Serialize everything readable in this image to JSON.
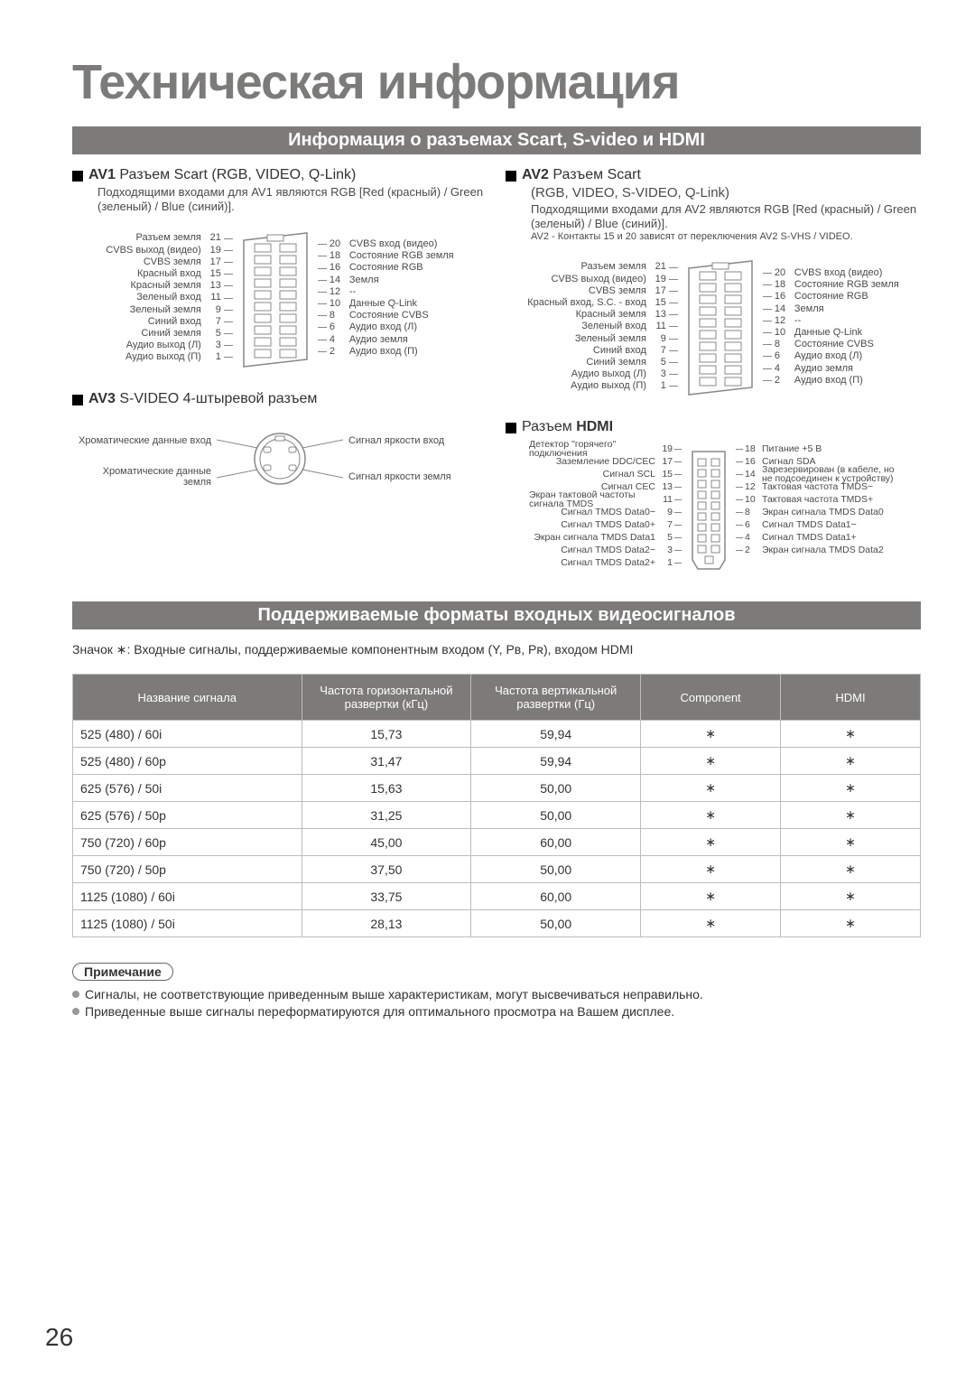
{
  "page_title": "Техническая информация",
  "page_number": "26",
  "colors": {
    "banner_bg": "#7c7b79",
    "banner_fg": "#ffffff",
    "text": "#333333",
    "muted": "#4a4a4a",
    "border": "#bdbdbd"
  },
  "banner1": "Информация о разъемах Scart, S-video и HDMI",
  "banner2": "Поддерживаемые форматы входных видеосигналов",
  "av1": {
    "title_bold": "AV1",
    "title_rest": " Разъем Scart (RGB, VIDEO, Q-Link)",
    "desc": "Подходящими входами для AV1 являются RGB [Red (красный) / Green (зеленый) / Blue (синий)]."
  },
  "av2": {
    "title_bold": "AV2",
    "title_rest": " Разъем Scart",
    "subtitle": "(RGB, VIDEO, S-VIDEO, Q-Link)",
    "desc": "Подходящими входами для AV2 являются RGB [Red (красный) / Green (зеленый) / Blue (синий)].",
    "desc2": "AV2 - Контакты 15 и 20 зависят от переключения AV2 S-VHS / VIDEO."
  },
  "av3": {
    "title_bold": "AV3",
    "title_rest": " S-VIDEO 4-штыревой разъем"
  },
  "hdmi_title": {
    "pre": "Разъем ",
    "bold": "HDMI"
  },
  "scart1": {
    "left": [
      {
        "n": "21",
        "l": "Разъем земля"
      },
      {
        "n": "19",
        "l": "CVBS выход (видео)"
      },
      {
        "n": "17",
        "l": "CVBS земля"
      },
      {
        "n": "15",
        "l": "Красный вход"
      },
      {
        "n": "13",
        "l": "Красный земля"
      },
      {
        "n": "11",
        "l": "Зеленый вход"
      },
      {
        "n": "9",
        "l": "Зеленый земля"
      },
      {
        "n": "7",
        "l": "Синий вход"
      },
      {
        "n": "5",
        "l": "Синий земля"
      },
      {
        "n": "3",
        "l": "Аудио выход (Л)"
      },
      {
        "n": "1",
        "l": "Аудио выход (П)"
      }
    ],
    "right": [
      {
        "n": "20",
        "l": "CVBS вход (видео)"
      },
      {
        "n": "18",
        "l": "Состояние RGB земля"
      },
      {
        "n": "16",
        "l": "Состояние RGB"
      },
      {
        "n": "14",
        "l": "Земля"
      },
      {
        "n": "12",
        "l": "--"
      },
      {
        "n": "10",
        "l": "Данные Q-Link"
      },
      {
        "n": "8",
        "l": "Состояние CVBS"
      },
      {
        "n": "6",
        "l": "Аудио вход (Л)"
      },
      {
        "n": "4",
        "l": "Аудио земля"
      },
      {
        "n": "2",
        "l": "Аудио вход (П)"
      }
    ]
  },
  "scart2": {
    "left": [
      {
        "n": "21",
        "l": "Разъем земля"
      },
      {
        "n": "19",
        "l": "CVBS выход (видео)"
      },
      {
        "n": "17",
        "l": "CVBS земля"
      },
      {
        "n": "15",
        "l": "Красный вход, S.C. - вход"
      },
      {
        "n": "13",
        "l": "Красный земля"
      },
      {
        "n": "11",
        "l": "Зеленый вход"
      },
      {
        "n": "9",
        "l": "Зеленый земля"
      },
      {
        "n": "7",
        "l": "Синий вход"
      },
      {
        "n": "5",
        "l": "Синий земля"
      },
      {
        "n": "3",
        "l": "Аудио выход (Л)"
      },
      {
        "n": "1",
        "l": "Аудио выход (П)"
      }
    ],
    "right": [
      {
        "n": "20",
        "l": "CVBS вход (видео)"
      },
      {
        "n": "18",
        "l": "Состояние RGB земля"
      },
      {
        "n": "16",
        "l": "Состояние RGB"
      },
      {
        "n": "14",
        "l": "Земля"
      },
      {
        "n": "12",
        "l": "--"
      },
      {
        "n": "10",
        "l": "Данные Q-Link"
      },
      {
        "n": "8",
        "l": "Состояние CVBS"
      },
      {
        "n": "6",
        "l": "Аудио вход (Л)"
      },
      {
        "n": "4",
        "l": "Аудио земля"
      },
      {
        "n": "2",
        "l": "Аудио вход (П)"
      }
    ]
  },
  "svideo": {
    "left_top": "Хроматические данные вход",
    "left_bottom": "Хроматические данные земля",
    "right_top": "Сигнал яркости вход",
    "right_bottom": "Сигнал яркости земля"
  },
  "hdmi": {
    "left": [
      {
        "n": "19",
        "l": "Детектор \"горячего\" подключения"
      },
      {
        "n": "17",
        "l": "Заземление DDC/CEC"
      },
      {
        "n": "15",
        "l": "Сигнал SCL"
      },
      {
        "n": "13",
        "l": "Сигнал CEC"
      },
      {
        "n": "11",
        "l": "Экран тактовой частоты сигнала TMDS"
      },
      {
        "n": "9",
        "l": "Сигнал TMDS Data0−"
      },
      {
        "n": "7",
        "l": "Сигнал TMDS Data0+"
      },
      {
        "n": "5",
        "l": "Экран сигнала TMDS Data1"
      },
      {
        "n": "3",
        "l": "Сигнал TMDS Data2−"
      },
      {
        "n": "1",
        "l": "Сигнал TMDS Data2+"
      }
    ],
    "right": [
      {
        "n": "18",
        "l": "Питание +5 В"
      },
      {
        "n": "16",
        "l": "Сигнал SDA"
      },
      {
        "n": "14",
        "l": "Зарезервирован (в кабеле, но не подсоединен к устройству)"
      },
      {
        "n": "12",
        "l": "Тактовая частота TMDS−"
      },
      {
        "n": "10",
        "l": "Тактовая частота TMDS+"
      },
      {
        "n": "8",
        "l": "Экран сигнала TMDS Data0"
      },
      {
        "n": "6",
        "l": "Сигнал TMDS Data1−"
      },
      {
        "n": "4",
        "l": "Сигнал TMDS Data1+"
      },
      {
        "n": "2",
        "l": "Экран сигнала TMDS Data2"
      }
    ]
  },
  "table_caption": "Значок ∗: Входные сигналы, поддерживаемые компонентным входом (Y, Pʙ, Pʀ), входом HDMI",
  "table": {
    "headers": [
      "Название сигнала",
      "Частота горизонтальной развертки (кГц)",
      "Частота вертикальной развертки (Гц)",
      "Component",
      "HDMI"
    ],
    "col_widths": [
      "27%",
      "20%",
      "20%",
      "16.5%",
      "16.5%"
    ],
    "rows": [
      [
        "525 (480) / 60i",
        "15,73",
        "59,94",
        "∗",
        "∗"
      ],
      [
        "525 (480) / 60p",
        "31,47",
        "59,94",
        "∗",
        "∗"
      ],
      [
        "625 (576) / 50i",
        "15,63",
        "50,00",
        "∗",
        "∗"
      ],
      [
        "625 (576) / 50p",
        "31,25",
        "50,00",
        "∗",
        "∗"
      ],
      [
        "750 (720) / 60p",
        "45,00",
        "60,00",
        "∗",
        "∗"
      ],
      [
        "750 (720) / 50p",
        "37,50",
        "50,00",
        "∗",
        "∗"
      ],
      [
        "1125 (1080) / 60i",
        "33,75",
        "60,00",
        "∗",
        "∗"
      ],
      [
        "1125 (1080) / 50i",
        "28,13",
        "50,00",
        "∗",
        "∗"
      ]
    ]
  },
  "note_title": "Примечание",
  "notes": [
    "Сигналы, не соответствующие приведенным выше характеристикам, могут высвечиваться неправильно.",
    "Приведенные выше сигналы переформатируются для оптимального просмотра на Вашем дисплее."
  ]
}
